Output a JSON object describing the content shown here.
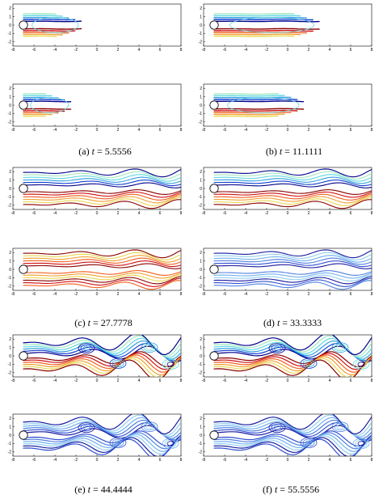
{
  "figure": {
    "panel_groups": [
      {
        "id": "a",
        "caption_label": "(a)",
        "variable": "t",
        "equals": "=",
        "time": "5.5556",
        "colormap": "jet",
        "pattern": "developing-wake"
      },
      {
        "id": "b",
        "caption_label": "(b)",
        "variable": "t",
        "equals": "=",
        "time": "11.1111",
        "colormap": "jet",
        "pattern": "developing-wake"
      },
      {
        "id": "c",
        "caption_label": "(c)",
        "variable": "t",
        "equals": "=",
        "time": "27.7778",
        "colormap": "jet",
        "pattern": "early-shedding"
      },
      {
        "id": "d",
        "caption_label": "(d)",
        "variable": "t",
        "equals": "=",
        "time": "33.3333",
        "colormap": "jet",
        "pattern": "early-shedding"
      },
      {
        "id": "e",
        "caption_label": "(e)",
        "variable": "t",
        "equals": "=",
        "time": "44.4444",
        "colormap": "jet",
        "pattern": "vortex-street"
      },
      {
        "id": "f",
        "caption_label": "(f)",
        "variable": "t",
        "equals": "=",
        "time": "55.5556",
        "colormap": "jet",
        "pattern": "vortex-street"
      }
    ],
    "axes": {
      "x_ticks": [
        "-8",
        "-6",
        "-4",
        "-2",
        "0",
        "2",
        "4",
        "6",
        "8"
      ],
      "y_ticks": [
        "2",
        "1",
        "0",
        "-1",
        "-2"
      ],
      "xlim": [
        -8,
        8
      ],
      "ylim": [
        -2.5,
        2.5
      ]
    },
    "colors": {
      "jet_warm": [
        "#8b0000",
        "#d01010",
        "#f06020",
        "#f0a030",
        "#e8d850"
      ],
      "jet_cool": [
        "#00008b",
        "#1040d0",
        "#30a0e0",
        "#60d8e0",
        "#a0e8c0"
      ],
      "blue_family": [
        "#1a1aa0",
        "#3050d0",
        "#5080e0",
        "#70b0f0",
        "#90d0f0"
      ]
    }
  }
}
